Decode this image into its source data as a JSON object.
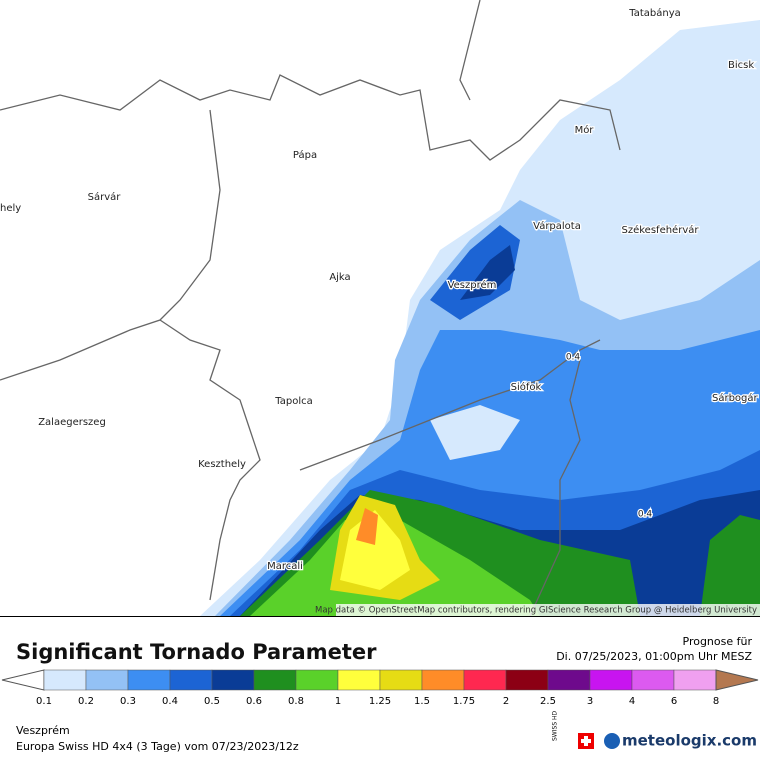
{
  "map": {
    "cities": [
      {
        "name": "Tatabánya"
      },
      {
        "name": "Bicsk"
      },
      {
        "name": "Mór"
      },
      {
        "name": "Pápa"
      },
      {
        "name": "Sárvár"
      },
      {
        "name": "hely"
      },
      {
        "name": "Várpalota"
      },
      {
        "name": "Székesfehérvár"
      },
      {
        "name": "Ajka"
      },
      {
        "name": "Veszprém"
      },
      {
        "name": "Tapolca"
      },
      {
        "name": "Siófok"
      },
      {
        "name": "Sárbogár"
      },
      {
        "name": "Zalaegerszeg"
      },
      {
        "name": "Keszthely"
      },
      {
        "name": "Marcali"
      }
    ],
    "contour_labels": [
      "0.4",
      "0.4"
    ],
    "attribution": "Map data © OpenStreetMap contributors, rendering GIScience Research Group @ Heidelberg University"
  },
  "footer": {
    "title": "Significant Tornado Parameter",
    "forecast_label": "Prognose für",
    "forecast_time": "Di. 07/25/2023, 01:00pm Uhr MESZ",
    "legend": {
      "labels": [
        "0.1",
        "0.2",
        "0.3",
        "0.4",
        "0.5",
        "0.6",
        "0.8",
        "1",
        "1.25",
        "1.5",
        "1.75",
        "2",
        "2.5",
        "3",
        "4",
        "6",
        "8"
      ],
      "colors": [
        "#d6e9fd",
        "#93c1f5",
        "#3d8ef2",
        "#1c64d4",
        "#0a3c96",
        "#1f8f1f",
        "#5ad12a",
        "#ffff3c",
        "#e6dc14",
        "#ff8c28",
        "#ff2850",
        "#8c0014",
        "#6e0a8c",
        "#c814f0",
        "#dc5af0",
        "#f0a0f0"
      ],
      "low_color": "#ffffff",
      "high_color": "#b47850"
    },
    "location": "Veszprém",
    "model": "Europa Swiss HD 4x4 (3 Tage) vom 07/23/2023/12z",
    "badge": "SWISS HD",
    "brand": "meteologix.com"
  }
}
